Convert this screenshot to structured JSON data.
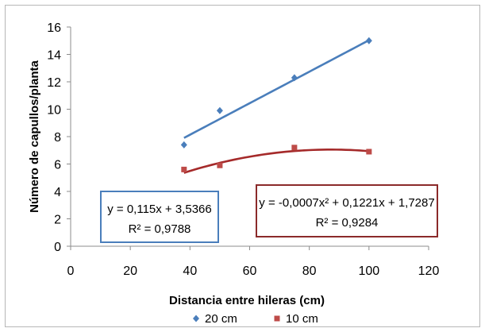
{
  "chart_data": {
    "type": "scatter",
    "xlabel": "Distancia entre hileras (cm)",
    "ylabel": "Número de capullos/planta",
    "xlim": [
      0,
      120
    ],
    "ylim": [
      0,
      16
    ],
    "xticks": [
      "0",
      "20",
      "40",
      "60",
      "80",
      "100",
      "120"
    ],
    "yticks": [
      "0",
      "2",
      "4",
      "6",
      "8",
      "10",
      "12",
      "14",
      "16"
    ],
    "grid": false,
    "legend_position": "bottom",
    "series": [
      {
        "name": "20 cm",
        "marker": "diamond",
        "color": "#4a7ebb",
        "x": [
          38,
          50,
          75,
          100
        ],
        "y": [
          7.4,
          9.9,
          12.3,
          15.0
        ],
        "trendline": {
          "type": "linear",
          "coefficients": [
            0.115,
            3.5366
          ],
          "x_range": [
            38,
            100
          ],
          "equation": "y = 0,115x + 3,5366",
          "r2": "R² = 0,9788",
          "box_color": "#4a7ebb"
        }
      },
      {
        "name": "10 cm",
        "marker": "square",
        "color": "#be4b48",
        "x": [
          38,
          50,
          75,
          100
        ],
        "y": [
          5.6,
          5.9,
          7.2,
          6.9
        ],
        "trendline": {
          "type": "polynomial",
          "coefficients": [
            -0.0007,
            0.1221,
            1.7287
          ],
          "x_range": [
            38,
            100
          ],
          "equation": "y = -0,0007x² + 0,1221x + 1,7287",
          "r2": "R² = 0,9284",
          "box_color": "#8b2a2a"
        }
      }
    ]
  }
}
